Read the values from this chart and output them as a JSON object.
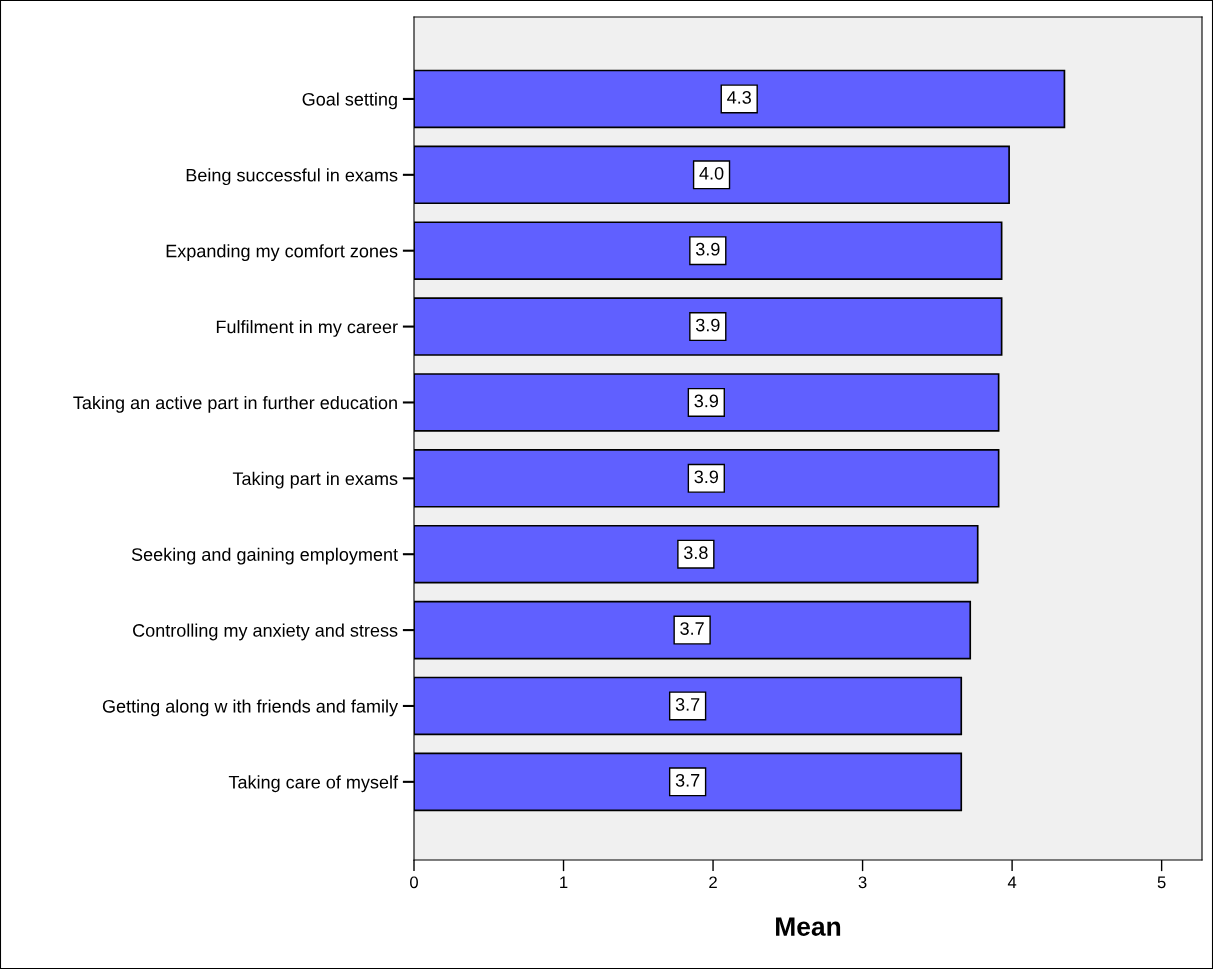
{
  "chart_data": {
    "type": "bar",
    "orientation": "horizontal",
    "xlabel": "Mean",
    "categories": [
      "Goal setting",
      "Being successful in exams",
      "Expanding my comfort zones",
      "Fulfilment in my career",
      "Taking an active part in further education",
      "Taking part in exams",
      "Seeking and gaining employment",
      "Controlling my anxiety and stress",
      "Getting along w ith friends and family",
      "Taking care of myself"
    ],
    "values": [
      4.35,
      3.98,
      3.93,
      3.93,
      3.91,
      3.91,
      3.77,
      3.72,
      3.66,
      3.66
    ],
    "value_labels": [
      "4.3",
      "4.0",
      "3.9",
      "3.9",
      "3.9",
      "3.9",
      "3.8",
      "3.7",
      "3.7",
      "3.7"
    ],
    "color": "#6060ff",
    "xlim": [
      0,
      5.27
    ],
    "xticks": [
      0,
      1,
      2,
      3,
      4,
      5
    ],
    "grid": false,
    "legend": false
  }
}
